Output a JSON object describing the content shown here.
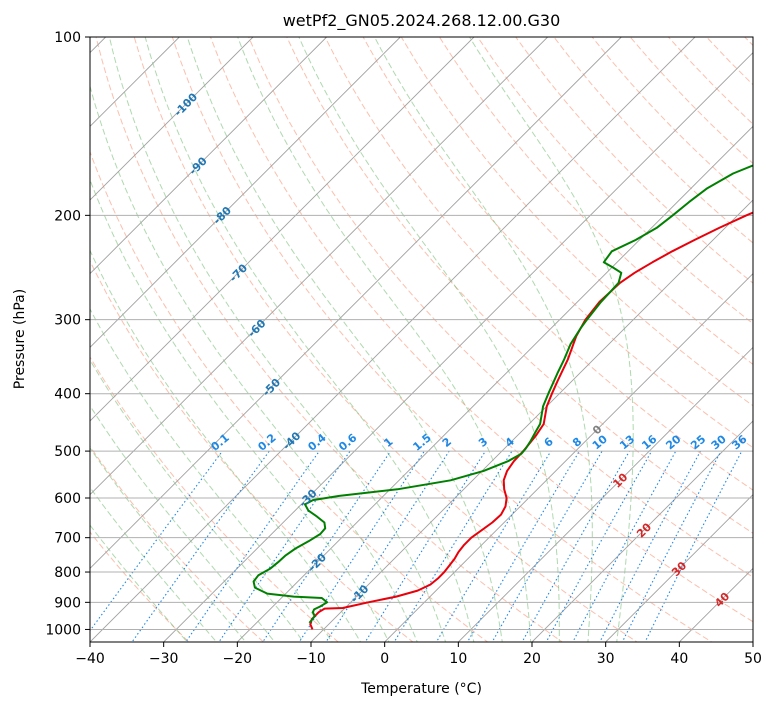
{
  "chart_data": {
    "type": "line",
    "subtype": "skew-t log-p",
    "title": "wetPf2_GN05.2024.268.12.00.G30",
    "xlabel": "Temperature (°C)",
    "ylabel": "Pressure (hPa)",
    "xlim": [
      -40,
      50
    ],
    "ylim": [
      1050,
      100
    ],
    "y_scale": "log",
    "x_ticks": [
      -40,
      -30,
      -20,
      -10,
      0,
      10,
      20,
      30,
      40,
      50
    ],
    "y_ticks": [
      1000,
      900,
      800,
      700,
      600,
      500,
      400,
      300,
      200,
      100
    ],
    "x_tick_labels": [
      "−40",
      "−30",
      "−20",
      "−10",
      "0",
      "10",
      "20",
      "30",
      "40",
      "50"
    ],
    "y_tick_labels": [
      "1000",
      "900",
      "800",
      "700",
      "600",
      "500",
      "400",
      "300",
      "200",
      "100"
    ],
    "grid": true,
    "skew_isotherm_labels": [
      "-100",
      "-90",
      "-80",
      "-70",
      "-60",
      "-50",
      "-40",
      "-30",
      "-20",
      "-10",
      "0",
      "10",
      "20",
      "30",
      "40"
    ],
    "mixing_ratio_labels": [
      "0.1",
      "0.2",
      "0.4",
      "0.6",
      "1",
      "1.5",
      "2",
      "3",
      "4",
      "6",
      "8",
      "10",
      "13",
      "16",
      "20",
      "25",
      "30",
      "36"
    ],
    "colors": {
      "temperature": "#e8000b",
      "dewpoint": "#008000",
      "isotherm_labels": "#1f77b4",
      "isotherm_warm_labels": "#d62728",
      "isotherm_zero": "#808080",
      "mixing_ratio": "#1e88e5",
      "dry_adiabat": "#fa8a6a",
      "moist_adiabat": "#5fb35f",
      "grid": "#b0b0b0"
    },
    "series": [
      {
        "key": "temperature",
        "points": [
          [
            1000,
            -11.5
          ],
          [
            980,
            -12.5
          ],
          [
            960,
            -13.0
          ],
          [
            935,
            -13.0
          ],
          [
            922,
            -12.7
          ],
          [
            920,
            -10.3
          ],
          [
            900,
            -7.6
          ],
          [
            880,
            -4.6
          ],
          [
            860,
            -2.5
          ],
          [
            840,
            -1.6
          ],
          [
            820,
            -1.4
          ],
          [
            800,
            -1.4
          ],
          [
            780,
            -1.6
          ],
          [
            760,
            -1.8
          ],
          [
            740,
            -2.2
          ],
          [
            720,
            -2.4
          ],
          [
            700,
            -2.4
          ],
          [
            680,
            -2.0
          ],
          [
            660,
            -1.6
          ],
          [
            640,
            -1.5
          ],
          [
            620,
            -2.0
          ],
          [
            600,
            -3.0
          ],
          [
            580,
            -4.5
          ],
          [
            560,
            -5.8
          ],
          [
            540,
            -6.6
          ],
          [
            520,
            -7.0
          ],
          [
            500,
            -7.1
          ],
          [
            470,
            -7.5
          ],
          [
            450,
            -8.0
          ],
          [
            420,
            -10.0
          ],
          [
            400,
            -11.0
          ],
          [
            380,
            -12.0
          ],
          [
            350,
            -13.5
          ],
          [
            320,
            -15.5
          ],
          [
            300,
            -16.5
          ],
          [
            280,
            -17.0
          ],
          [
            260,
            -16.8
          ],
          [
            250,
            -16.2
          ],
          [
            240,
            -15.2
          ],
          [
            230,
            -14.0
          ],
          [
            220,
            -12.5
          ],
          [
            210,
            -10.8
          ],
          [
            200,
            -8.8
          ],
          [
            190,
            -6.3
          ],
          [
            180,
            -3.8
          ],
          [
            170,
            -1.8
          ],
          [
            160,
            -0.4
          ],
          [
            150,
            0.8
          ],
          [
            140,
            1.8
          ],
          [
            130,
            2.8
          ],
          [
            120,
            4.2
          ],
          [
            110,
            6.2
          ],
          [
            100,
            9.5
          ]
        ]
      },
      {
        "key": "dewpoint",
        "points": [
          [
            975,
            -12.8
          ],
          [
            950,
            -13.0
          ],
          [
            935,
            -13.8
          ],
          [
            925,
            -14.0
          ],
          [
            915,
            -13.6
          ],
          [
            900,
            -13.2
          ],
          [
            885,
            -14.5
          ],
          [
            880,
            -18.5
          ],
          [
            870,
            -22.5
          ],
          [
            850,
            -25.0
          ],
          [
            830,
            -26.0
          ],
          [
            810,
            -26.2
          ],
          [
            790,
            -25.5
          ],
          [
            770,
            -25.3
          ],
          [
            750,
            -25.2
          ],
          [
            730,
            -24.8
          ],
          [
            710,
            -24.0
          ],
          [
            690,
            -23.4
          ],
          [
            675,
            -23.5
          ],
          [
            660,
            -24.4
          ],
          [
            645,
            -26.2
          ],
          [
            630,
            -28.2
          ],
          [
            615,
            -29.5
          ],
          [
            605,
            -29.0
          ],
          [
            595,
            -26.0
          ],
          [
            580,
            -19.0
          ],
          [
            560,
            -13.0
          ],
          [
            540,
            -9.8
          ],
          [
            520,
            -7.8
          ],
          [
            505,
            -7.0
          ],
          [
            495,
            -7.1
          ],
          [
            480,
            -7.5
          ],
          [
            465,
            -8.0
          ],
          [
            450,
            -8.5
          ],
          [
            420,
            -10.5
          ],
          [
            400,
            -11.5
          ],
          [
            370,
            -13.0
          ],
          [
            350,
            -14.0
          ],
          [
            330,
            -15.2
          ],
          [
            310,
            -16.0
          ],
          [
            300,
            -16.3
          ],
          [
            280,
            -16.8
          ],
          [
            260,
            -17.0
          ],
          [
            250,
            -18.0
          ],
          [
            245,
            -19.8
          ],
          [
            240,
            -21.8
          ],
          [
            230,
            -22.2
          ],
          [
            220,
            -20.5
          ],
          [
            210,
            -19.3
          ],
          [
            200,
            -18.8
          ],
          [
            190,
            -18.4
          ],
          [
            180,
            -17.8
          ],
          [
            170,
            -16.3
          ],
          [
            160,
            -13.2
          ],
          [
            150,
            -10.2
          ],
          [
            140,
            -7.0
          ],
          [
            130,
            -4.3
          ],
          [
            120,
            -2.3
          ],
          [
            110,
            -0.8
          ],
          [
            100,
            -0.1
          ]
        ]
      }
    ]
  }
}
